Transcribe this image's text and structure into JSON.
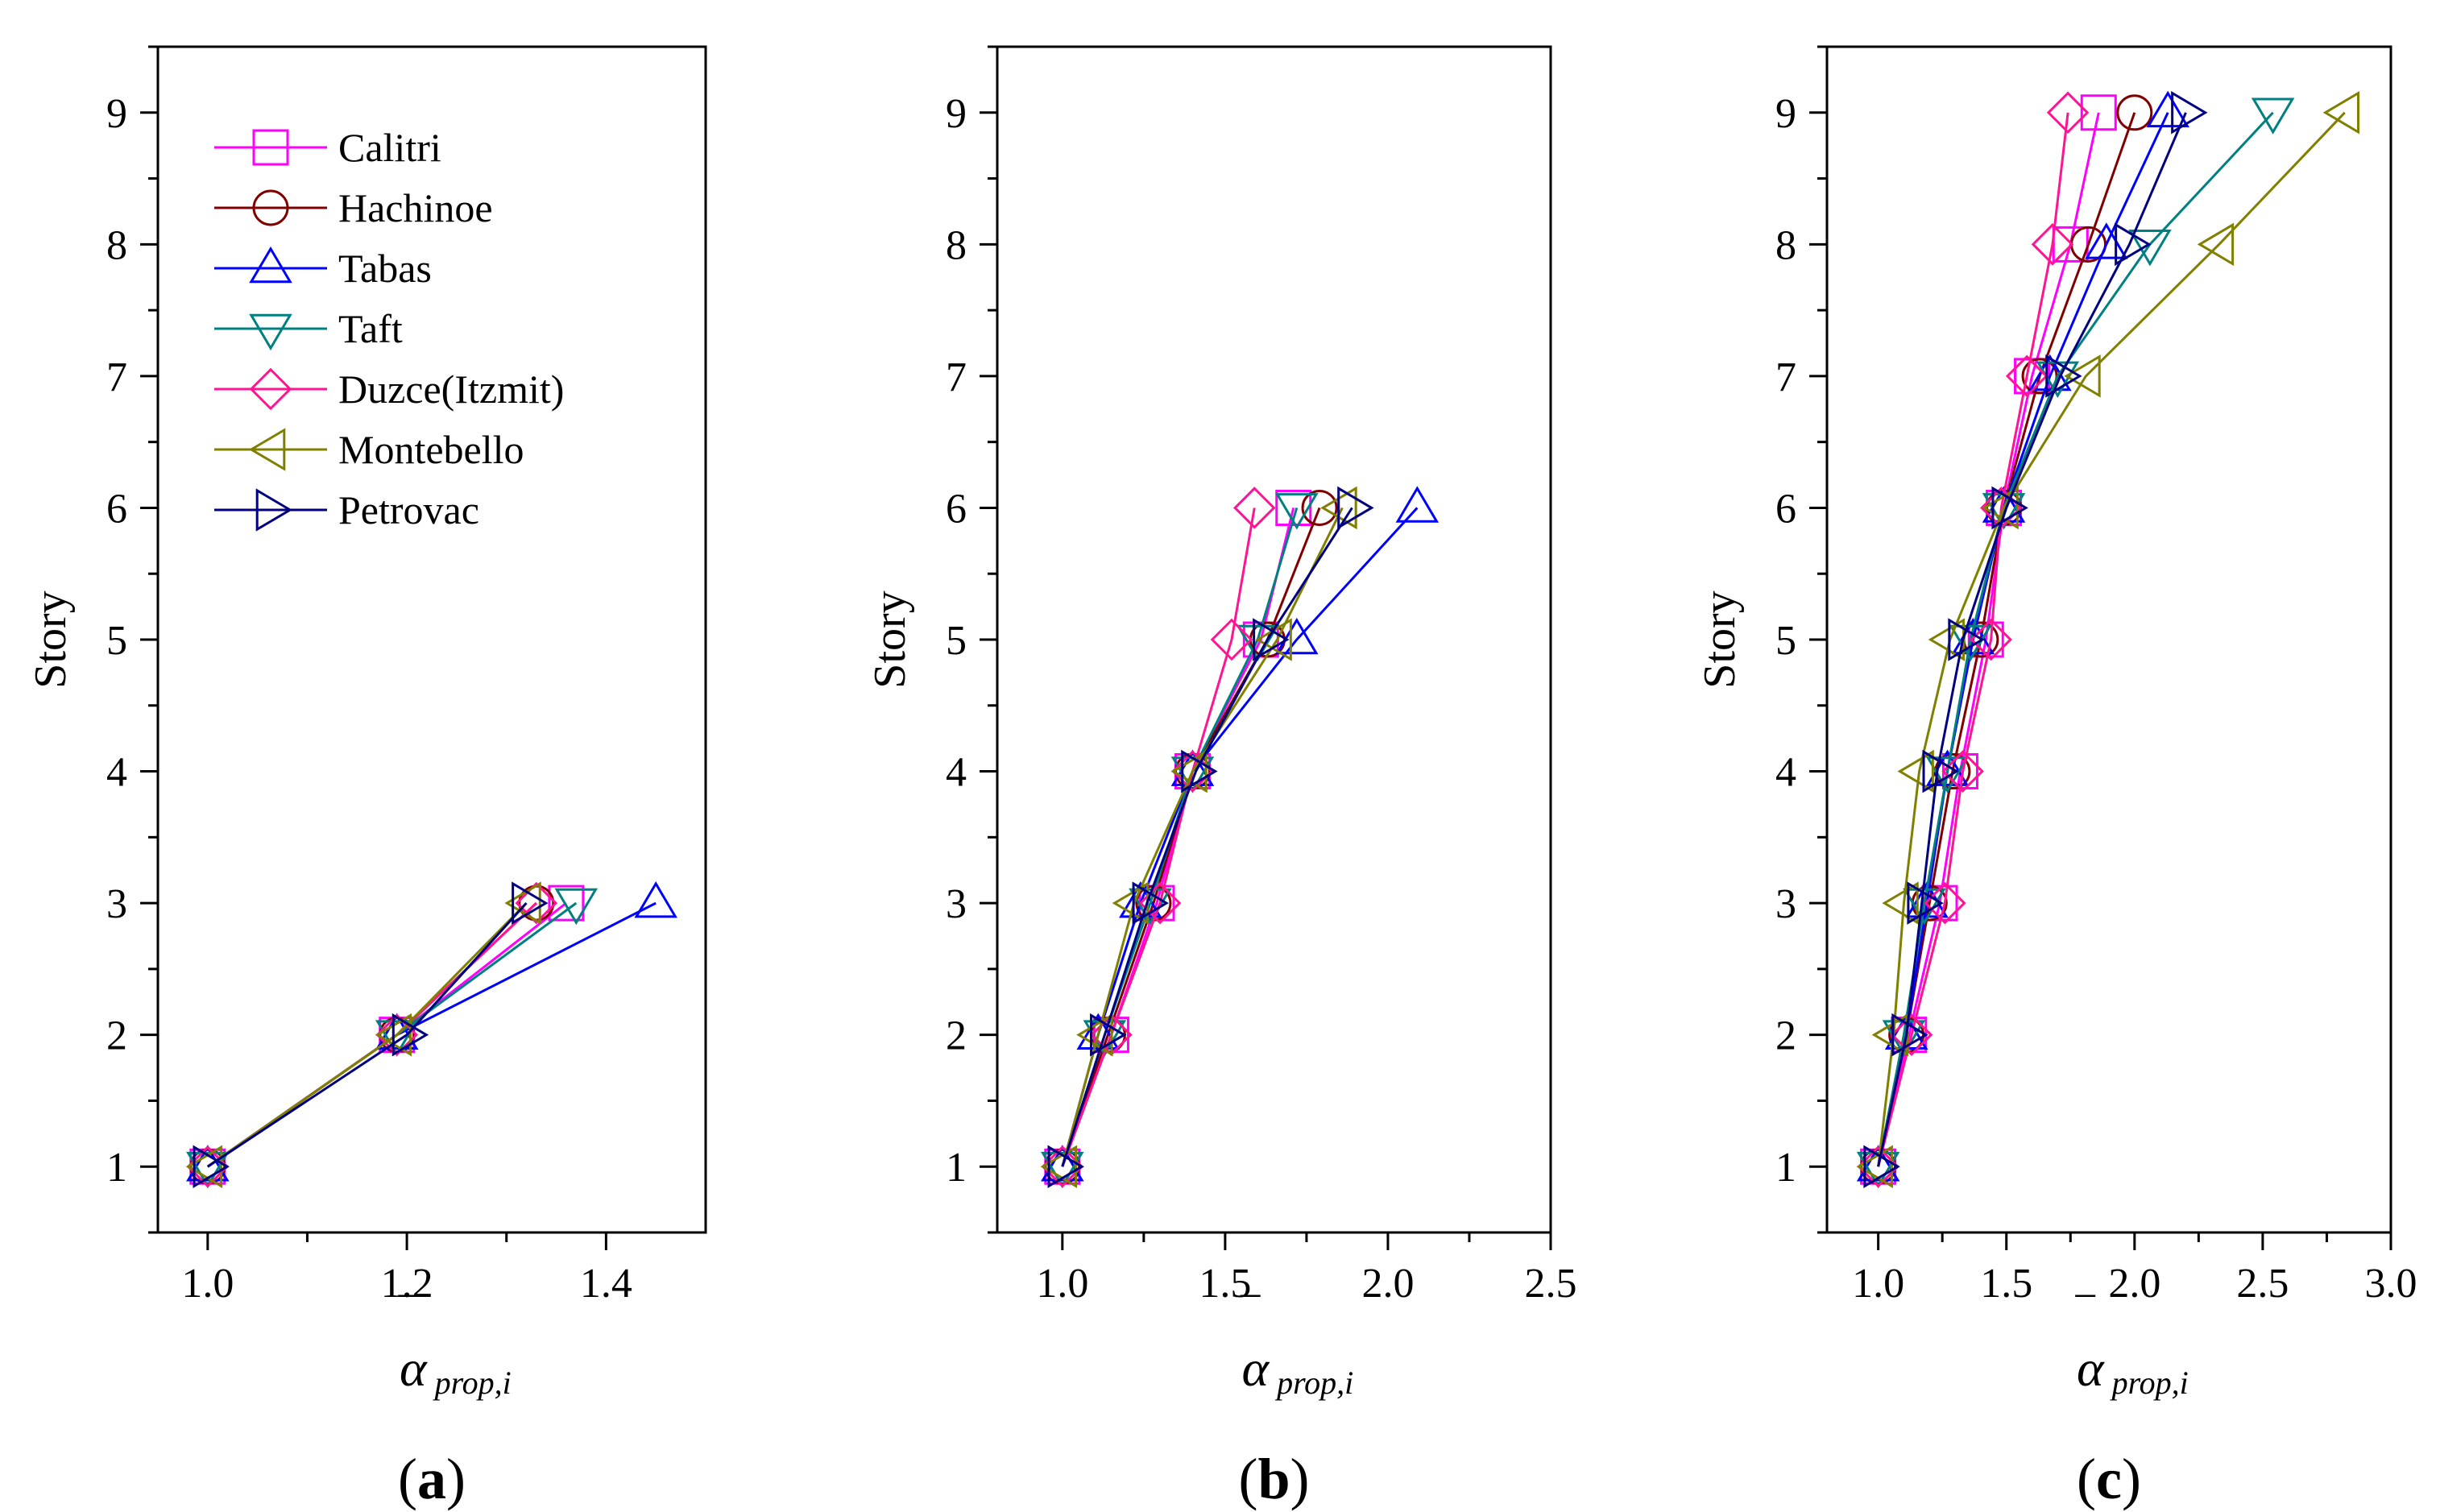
{
  "figure": {
    "y_label": "Story",
    "x_label_symbol": "α",
    "x_label_subscript": "prop,i",
    "x_label_bar": "‾"
  },
  "series_styles": [
    {
      "name": "Calitri",
      "color": "#ff00ff",
      "marker": "square"
    },
    {
      "name": "Hachinoe",
      "color": "#800000",
      "marker": "circle"
    },
    {
      "name": "Tabas",
      "color": "#0000ff",
      "marker": "triangle-up"
    },
    {
      "name": "Taft",
      "color": "#008080",
      "marker": "triangle-down"
    },
    {
      "name": "Duzce(Itzmit)",
      "color": "#ff1493",
      "marker": "diamond"
    },
    {
      "name": "Montebello",
      "color": "#808000",
      "marker": "triangle-left"
    },
    {
      "name": "Petrovac",
      "color": "#000080",
      "marker": "triangle-right"
    }
  ],
  "chart_data": [
    {
      "type": "line",
      "panel_label": "a",
      "xlabel": "α prop,i",
      "ylabel": "Story",
      "xlim": [
        0.95,
        1.5
      ],
      "ylim": [
        0.5,
        9.5
      ],
      "x_ticks": [
        1.0,
        1.2,
        1.4
      ],
      "x_tick_labels": [
        "1.0",
        "1.2",
        "1.4"
      ],
      "y_ticks": [
        1,
        2,
        3,
        4,
        5,
        6,
        7,
        8,
        9
      ],
      "y_tick_labels": [
        "1",
        "2",
        "3",
        "4",
        "5",
        "6",
        "7",
        "8",
        "9"
      ],
      "legend": "top-left",
      "stories": [
        1,
        2,
        3
      ],
      "series": [
        {
          "name": "Calitri",
          "values": [
            1.0,
            1.19,
            1.36
          ]
        },
        {
          "name": "Hachinoe",
          "values": [
            1.0,
            1.19,
            1.33
          ]
        },
        {
          "name": "Tabas",
          "values": [
            1.0,
            1.19,
            1.45
          ]
        },
        {
          "name": "Taft",
          "values": [
            1.0,
            1.19,
            1.37
          ]
        },
        {
          "name": "Duzce(Itzmit)",
          "values": [
            1.0,
            1.19,
            1.33
          ]
        },
        {
          "name": "Montebello",
          "values": [
            1.0,
            1.19,
            1.32
          ]
        },
        {
          "name": "Petrovac",
          "values": [
            1.0,
            1.2,
            1.32
          ]
        }
      ]
    },
    {
      "type": "line",
      "panel_label": "b",
      "xlabel": "α prop,i",
      "ylabel": "Story",
      "xlim": [
        0.8,
        2.5
      ],
      "ylim": [
        0.5,
        9.5
      ],
      "x_ticks": [
        1.0,
        1.5,
        2.0,
        2.5
      ],
      "x_tick_labels": [
        "1.0",
        "1.5",
        "2.0",
        "2.5"
      ],
      "y_ticks": [
        1,
        2,
        3,
        4,
        5,
        6,
        7,
        8,
        9
      ],
      "y_tick_labels": [
        "1",
        "2",
        "3",
        "4",
        "5",
        "6",
        "7",
        "8",
        "9"
      ],
      "stories": [
        1,
        2,
        3,
        4,
        5,
        6
      ],
      "series": [
        {
          "name": "Calitri",
          "values": [
            1.0,
            1.15,
            1.29,
            1.4,
            1.61,
            1.71
          ]
        },
        {
          "name": "Hachinoe",
          "values": [
            1.0,
            1.14,
            1.28,
            1.4,
            1.63,
            1.79
          ]
        },
        {
          "name": "Tabas",
          "values": [
            1.0,
            1.11,
            1.24,
            1.4,
            1.72,
            2.09
          ]
        },
        {
          "name": "Taft",
          "values": [
            1.0,
            1.13,
            1.27,
            1.4,
            1.6,
            1.72
          ]
        },
        {
          "name": "Duzce(Itzmit)",
          "values": [
            1.0,
            1.15,
            1.3,
            1.4,
            1.52,
            1.59
          ]
        },
        {
          "name": "Montebello",
          "values": [
            1.0,
            1.11,
            1.22,
            1.4,
            1.66,
            1.86
          ]
        },
        {
          "name": "Petrovac",
          "values": [
            1.0,
            1.13,
            1.26,
            1.41,
            1.63,
            1.89
          ]
        }
      ]
    },
    {
      "type": "line",
      "panel_label": "c",
      "xlabel": "α prop,i",
      "ylabel": "Story",
      "xlim": [
        0.8,
        3.0
      ],
      "ylim": [
        0.5,
        9.5
      ],
      "x_ticks": [
        1.0,
        1.5,
        2.0,
        2.5,
        3.0
      ],
      "x_tick_labels": [
        "1.0",
        "1.5",
        "2.0",
        "2.5",
        "3.0"
      ],
      "y_ticks": [
        1,
        2,
        3,
        4,
        5,
        6,
        7,
        8,
        9
      ],
      "y_tick_labels": [
        "1",
        "2",
        "3",
        "4",
        "5",
        "6",
        "7",
        "8",
        "9"
      ],
      "stories": [
        1,
        2,
        3,
        4,
        5,
        6,
        7,
        8,
        9
      ],
      "series": [
        {
          "name": "Calitri",
          "values": [
            1.0,
            1.12,
            1.24,
            1.32,
            1.42,
            1.49,
            1.6,
            1.75,
            1.86
          ]
        },
        {
          "name": "Hachinoe",
          "values": [
            1.0,
            1.11,
            1.2,
            1.29,
            1.4,
            1.49,
            1.63,
            1.82,
            2.0
          ]
        },
        {
          "name": "Tabas",
          "values": [
            1.0,
            1.11,
            1.19,
            1.27,
            1.37,
            1.49,
            1.67,
            1.89,
            2.13
          ]
        },
        {
          "name": "Taft",
          "values": [
            1.0,
            1.1,
            1.18,
            1.27,
            1.36,
            1.49,
            1.7,
            2.06,
            2.54
          ]
        },
        {
          "name": "Duzce(Itzmit)",
          "values": [
            1.0,
            1.13,
            1.26,
            1.33,
            1.44,
            1.48,
            1.58,
            1.68,
            1.74
          ]
        },
        {
          "name": "Montebello",
          "values": [
            1.0,
            1.06,
            1.1,
            1.16,
            1.28,
            1.49,
            1.81,
            2.33,
            2.82
          ]
        },
        {
          "name": "Petrovac",
          "values": [
            1.0,
            1.11,
            1.17,
            1.23,
            1.33,
            1.5,
            1.71,
            1.98,
            2.2
          ]
        }
      ]
    }
  ]
}
